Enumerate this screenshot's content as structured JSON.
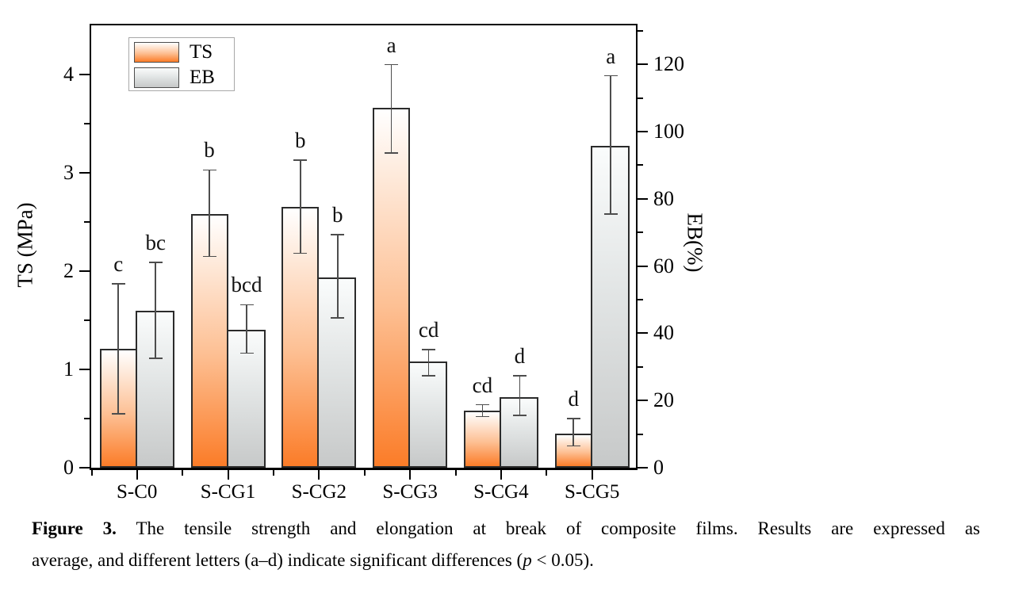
{
  "figure": {
    "caption": {
      "label": "Figure 3.",
      "line1_rest": "The tensile strength and elongation at break of composite films. Results are expressed as",
      "line2_before_p": "average, and different letters (a–d) indicate significant differences (",
      "p_symbol": "p",
      "line2_after_p": " < 0.05)."
    }
  },
  "chart_data": {
    "type": "bar",
    "title": "",
    "categories": [
      "S-C0",
      "S-CG1",
      "S-CG2",
      "S-CG3",
      "S-CG4",
      "S-CG5"
    ],
    "series": [
      {
        "name": "TS",
        "axis": "left",
        "unit": "MPa",
        "values": [
          1.21,
          2.58,
          2.65,
          3.66,
          0.58,
          0.35
        ],
        "error_low": [
          0.55,
          2.15,
          2.18,
          3.2,
          0.52,
          0.22
        ],
        "error_high": [
          1.87,
          3.03,
          3.13,
          4.1,
          0.64,
          0.5
        ],
        "letters": [
          "c",
          "b",
          "b",
          "a",
          "cd",
          "d"
        ]
      },
      {
        "name": "EB",
        "axis": "right",
        "unit": "%",
        "values": [
          46.8,
          41.0,
          56.6,
          31.6,
          21.1,
          95.7
        ],
        "error_low": [
          32.5,
          34.1,
          44.6,
          27.4,
          15.6,
          75.5
        ],
        "error_high": [
          61.1,
          48.5,
          69.3,
          35.1,
          27.4,
          116.6
        ],
        "letters": [
          "bc",
          "bcd",
          "b",
          "cd",
          "d",
          "a"
        ]
      }
    ],
    "left_axis": {
      "label": "TS (MPa)",
      "min": 0,
      "max": 4.5,
      "major_ticks": [
        0,
        1,
        2,
        3,
        4
      ],
      "minor_step": 0.5
    },
    "right_axis": {
      "label": "EB(%)",
      "min": 0,
      "max": 131.6,
      "major_ticks": [
        0,
        20,
        40,
        60,
        80,
        100,
        120
      ],
      "minor_step": 10
    },
    "legend": {
      "position": "top-left",
      "entries": [
        "TS",
        "EB"
      ]
    },
    "grid": false,
    "colors": {
      "ts_top": "#ffffff",
      "ts_mid": "#fdc094",
      "ts_bottom": "#fb7c28",
      "eb_top": "#fafcfc",
      "eb_mid": "#e2e5e5",
      "eb_bottom": "#c7c9c9",
      "bar_border": "#2b2b2b",
      "error": "#4d4d4d",
      "axis": "#000000"
    }
  }
}
